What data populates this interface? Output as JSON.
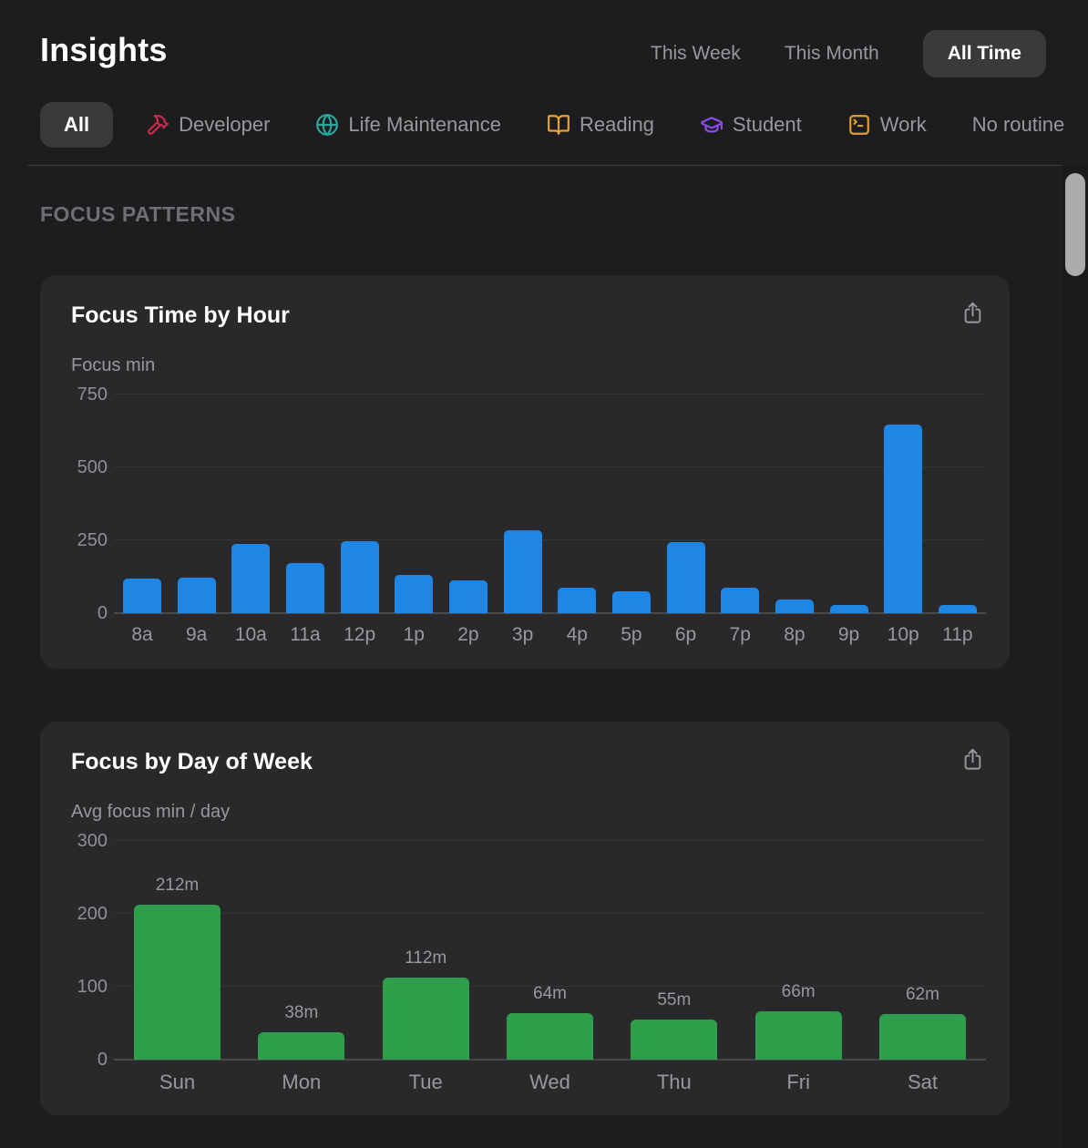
{
  "header": {
    "title": "Insights",
    "range_tabs": [
      {
        "label": "This Week",
        "active": false
      },
      {
        "label": "This Month",
        "active": false
      },
      {
        "label": "All Time",
        "active": true
      }
    ]
  },
  "filters": [
    {
      "label": "All",
      "active": true,
      "icon": null
    },
    {
      "label": "Developer",
      "icon": "hammer-icon",
      "icon_color": "#c92c4b"
    },
    {
      "label": "Life Maintenance",
      "icon": "globe-icon",
      "icon_color": "#2aa79b"
    },
    {
      "label": "Reading",
      "icon": "open-book-icon",
      "icon_color": "#e6a33c"
    },
    {
      "label": "Student",
      "icon": "graduation-cap-icon",
      "icon_color": "#8b4cf0"
    },
    {
      "label": "Work",
      "icon": "terminal-icon",
      "icon_color": "#e0a030"
    },
    {
      "label": "No routine",
      "icon": null,
      "clipped_at_edge": true
    }
  ],
  "section_title": "FOCUS PATTERNS",
  "share_icon": "share-icon",
  "colors": {
    "background": "#1d1d1f",
    "card": "#29292b",
    "pill": "#3a3a3c",
    "bar_blue": "#1e86e5",
    "bar_green": "#2f9e4b",
    "text_secondary": "#98989d"
  },
  "chart_data": [
    {
      "type": "bar",
      "title": "Focus Time by Hour",
      "ylabel": "Focus min",
      "categories": [
        "8a",
        "9a",
        "10a",
        "11a",
        "12p",
        "1p",
        "2p",
        "3p",
        "4p",
        "5p",
        "6p",
        "7p",
        "8p",
        "9p",
        "10p",
        "11p"
      ],
      "values": [
        120,
        122,
        236,
        173,
        248,
        130,
        113,
        283,
        86,
        76,
        245,
        88,
        47,
        27,
        648,
        27
      ],
      "ylim": [
        0,
        750
      ],
      "yticks": [
        0,
        250,
        500,
        750
      ],
      "grid": true,
      "legend": null,
      "bar_color": "#1e86e5",
      "value_labels": null
    },
    {
      "type": "bar",
      "title": "Focus by Day of Week",
      "ylabel": "Avg focus min / day",
      "categories": [
        "Sun",
        "Mon",
        "Tue",
        "Wed",
        "Thu",
        "Fri",
        "Sat"
      ],
      "values": [
        212,
        38,
        112,
        64,
        55,
        66,
        62
      ],
      "value_labels": [
        "212m",
        "38m",
        "112m",
        "64m",
        "55m",
        "66m",
        "62m"
      ],
      "ylim": [
        0,
        300
      ],
      "yticks": [
        0,
        100,
        200,
        300
      ],
      "grid": true,
      "legend": null,
      "bar_color": "#2f9e4b"
    }
  ]
}
